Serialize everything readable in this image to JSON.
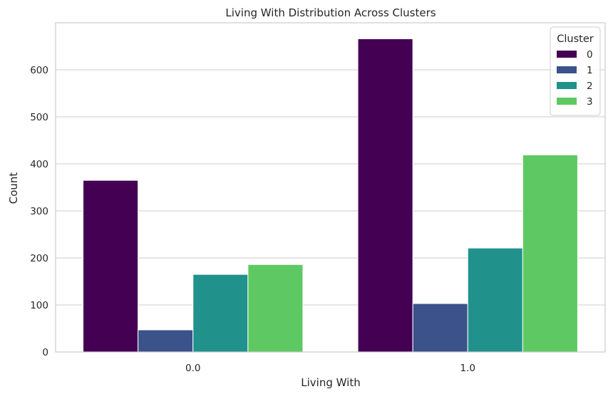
{
  "chart_data": {
    "type": "bar",
    "title": "Living With Distribution Across Clusters",
    "xlabel": "Living With",
    "ylabel": "Count",
    "categories": [
      "0.0",
      "1.0"
    ],
    "ylim": [
      0,
      700
    ],
    "yticks": [
      0,
      100,
      200,
      300,
      400,
      500,
      600
    ],
    "grid": "horizontal",
    "legend": {
      "title": "Cluster",
      "placement": "top-right"
    },
    "series": [
      {
        "name": "0",
        "color": "#440154",
        "values": [
          365,
          666
        ]
      },
      {
        "name": "1",
        "color": "#3b528b",
        "values": [
          47,
          103
        ]
      },
      {
        "name": "2",
        "color": "#21918c",
        "values": [
          165,
          221
        ]
      },
      {
        "name": "3",
        "color": "#5ec962",
        "values": [
          186,
          419
        ]
      }
    ]
  }
}
